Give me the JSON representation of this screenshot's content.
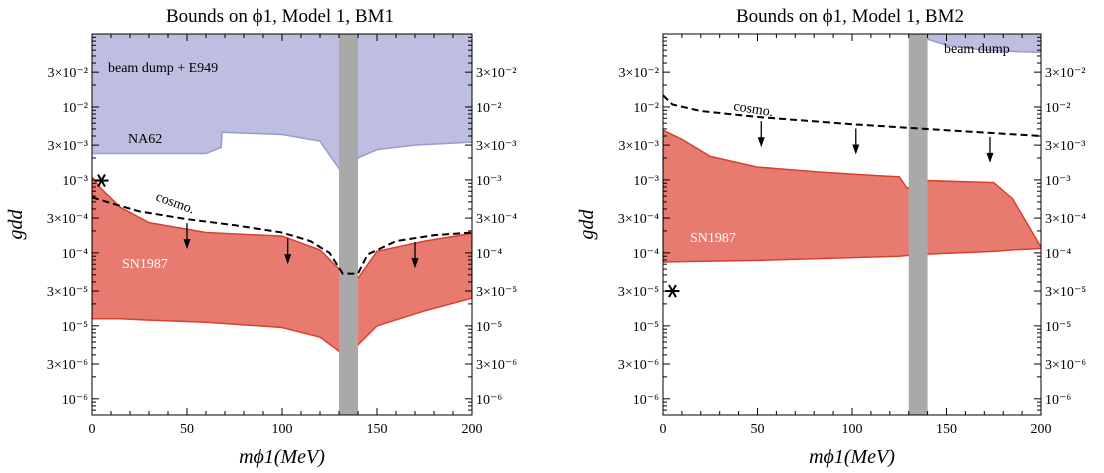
{
  "chart_data": [
    {
      "type": "area",
      "title": "Bounds on ϕ1, Model 1, BM1",
      "xlabel": "mϕ1(MeV)",
      "ylabel": "gdd",
      "x_scale": "linear",
      "y_scale": "log",
      "xlim": [
        0,
        200
      ],
      "ylim": [
        6e-07,
        0.1
      ],
      "x_ticks": [
        "0",
        "50",
        "100",
        "150",
        "200"
      ],
      "y_ticks": [
        "10⁻⁶",
        "3×10⁻⁶",
        "10⁻⁵",
        "3×10⁻⁵",
        "10⁻⁴",
        "3×10⁻⁴",
        "10⁻³",
        "3×10⁻³",
        "10⁻²",
        "3×10⁻²"
      ],
      "annotations": [
        "beam dump + E949",
        "NA62",
        "cosmo.",
        "SN1987"
      ],
      "colors": {
        "beam_dump": "#bebee0",
        "beam_dump_edge": "#9a9ad0",
        "sn1987": "#e87b70",
        "sn1987_edge": "#d8402f",
        "band": "#a9a9a9"
      },
      "vertical_band": [
        130,
        140
      ],
      "benchmark_point": {
        "x": 5,
        "y": 0.00098
      },
      "beam_dump_region": {
        "x": [
          0,
          60,
          68,
          68.5,
          100,
          120,
          132,
          134,
          136,
          140,
          150,
          170,
          200
        ],
        "y_lower": [
          0.0023,
          0.0023,
          0.0028,
          0.0045,
          0.0042,
          0.0034,
          0.0012,
          0.0011,
          0.0012,
          0.002,
          0.0026,
          0.003,
          0.0033
        ]
      },
      "sn1987_region": {
        "x": [
          0,
          5,
          15,
          30,
          60,
          100,
          120,
          130,
          135,
          140,
          150,
          175,
          200
        ],
        "y_upper": [
          0.0011,
          0.00075,
          0.00042,
          0.00026,
          0.00019,
          0.00017,
          0.00011,
          6e-05,
          3.5e-05,
          4.5e-05,
          0.000105,
          0.000145,
          0.000185
        ],
        "y_lower": [
          1.25e-05,
          1.25e-05,
          1.25e-05,
          1.2e-05,
          1.12e-05,
          9.5e-06,
          7e-06,
          4.5e-06,
          3.2e-06,
          5.5e-06,
          1e-05,
          1.6e-05,
          2.4e-05
        ]
      },
      "cosmo_line": {
        "x": [
          0,
          10,
          25,
          50,
          75,
          100,
          115,
          125,
          132,
          140,
          145,
          160,
          180,
          200
        ],
        "y": [
          0.00058,
          0.00048,
          0.00037,
          0.00029,
          0.00024,
          0.00019,
          0.000145,
          0.0001,
          5.2e-05,
          5.2e-05,
          9.5e-05,
          0.000145,
          0.000175,
          0.00019
        ]
      },
      "cosmo_arrows_x": [
        50,
        103,
        170
      ]
    },
    {
      "type": "area",
      "title": "Bounds on ϕ1, Model 1, BM2",
      "xlabel": "mϕ1(MeV)",
      "ylabel": "gdd",
      "x_scale": "linear",
      "y_scale": "log",
      "xlim": [
        0,
        200
      ],
      "ylim": [
        6e-07,
        0.1
      ],
      "x_ticks": [
        "0",
        "50",
        "100",
        "150",
        "200"
      ],
      "y_ticks": [
        "10⁻⁶",
        "3×10⁻⁶",
        "10⁻⁵",
        "3×10⁻⁵",
        "10⁻⁴",
        "3×10⁻⁴",
        "10⁻³",
        "3×10⁻³",
        "10⁻²",
        "3×10⁻²"
      ],
      "annotations": [
        "beam dump",
        "cosmo.",
        "SN1987"
      ],
      "colors": {
        "beam_dump": "#bebee0",
        "beam_dump_edge": "#9a9ad0",
        "sn1987": "#e87b70",
        "sn1987_edge": "#d8402f",
        "band": "#a9a9a9"
      },
      "vertical_band": [
        130,
        140
      ],
      "benchmark_point": {
        "x": 5,
        "y": 3e-05
      },
      "beam_dump_region": {
        "x": [
          140,
          150,
          170,
          190,
          200
        ],
        "y_lower": [
          0.085,
          0.07,
          0.06,
          0.057,
          0.056
        ]
      },
      "sn1987_region": {
        "x": [
          0,
          10,
          25,
          50,
          80,
          100,
          125,
          129,
          137,
          140,
          175,
          185,
          200
        ],
        "y_upper": [
          0.0048,
          0.0036,
          0.0021,
          0.0015,
          0.0013,
          0.0012,
          0.0011,
          0.00078,
          0.00078,
          0.00098,
          0.00092,
          0.00055,
          0.00012
        ],
        "y_lower": [
          7.5e-05,
          7.6e-05,
          7.7e-05,
          7.9e-05,
          8.3e-05,
          8.6e-05,
          9e-05,
          9.2e-05,
          9.5e-05,
          9.6e-05,
          0.000105,
          0.00011,
          0.000115
        ]
      },
      "cosmo_line": {
        "x": [
          0,
          5,
          20,
          50,
          100,
          150,
          200
        ],
        "y": [
          0.0145,
          0.0108,
          0.0088,
          0.0073,
          0.0058,
          0.0048,
          0.004
        ]
      },
      "cosmo_arrows_x": [
        52,
        102,
        173
      ]
    }
  ]
}
